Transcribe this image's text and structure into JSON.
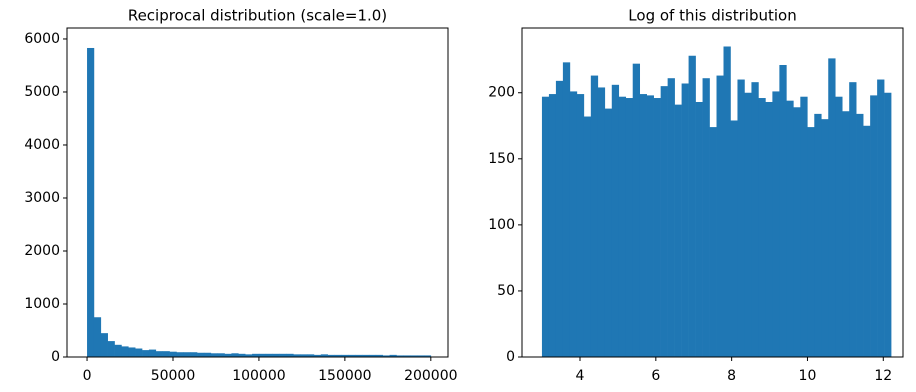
{
  "chart_data": [
    {
      "type": "histogram",
      "title": "Reciprocal distribution (scale=1.0)",
      "color": "#1f77b4",
      "bins": [
        0,
        4000,
        8000,
        12000,
        16000,
        20000,
        24000,
        28000,
        32000,
        36000,
        40000,
        44000,
        48000,
        52000,
        56000,
        60000,
        64000,
        68000,
        72000,
        76000,
        80000,
        84000,
        88000,
        92000,
        96000,
        100000,
        104000,
        108000,
        112000,
        116000,
        120000,
        124000,
        128000,
        132000,
        136000,
        140000,
        144000,
        148000,
        152000,
        156000,
        160000,
        164000,
        168000,
        172000,
        176000,
        180000,
        184000,
        188000,
        192000,
        196000,
        200000
      ],
      "values": [
        5830,
        750,
        450,
        300,
        230,
        200,
        180,
        160,
        130,
        140,
        110,
        110,
        100,
        90,
        90,
        90,
        80,
        80,
        70,
        70,
        60,
        70,
        60,
        50,
        60,
        60,
        60,
        60,
        60,
        60,
        50,
        50,
        50,
        40,
        50,
        40,
        40,
        40,
        40,
        40,
        40,
        40,
        40,
        30,
        40,
        30,
        30,
        30,
        30,
        30
      ],
      "xlim": [
        -11662,
        210000
      ],
      "ylim": [
        0,
        6207
      ],
      "xticks": [
        0,
        50000,
        100000,
        150000,
        200000
      ],
      "yticks": [
        0,
        1000,
        2000,
        3000,
        4000,
        5000,
        6000
      ]
    },
    {
      "type": "histogram",
      "title": "Log of this distribution",
      "color": "#1f77b4",
      "bins": [
        2.996,
        3.1802,
        3.3644,
        3.5486,
        3.7328,
        3.917,
        4.1012,
        4.2854,
        4.4696,
        4.6538,
        4.838,
        5.0222,
        5.2064,
        5.3906,
        5.5748,
        5.759,
        5.9432,
        6.1274,
        6.3116,
        6.4958,
        6.68,
        6.8642,
        7.0484,
        7.2326,
        7.4168,
        7.601,
        7.7852,
        7.9694,
        8.1536,
        8.3378,
        8.522,
        8.7062,
        8.8904,
        9.0746,
        9.2588,
        9.443,
        9.6272,
        9.8114,
        9.9956,
        10.1798,
        10.364,
        10.5482,
        10.7324,
        10.9166,
        11.1008,
        11.285,
        11.4692,
        11.6534,
        11.8376,
        12.0218,
        12.206
      ],
      "values": [
        197,
        199,
        209,
        223,
        201,
        199,
        182,
        213,
        204,
        188,
        206,
        197,
        196,
        222,
        199,
        198,
        196,
        205,
        211,
        191,
        207,
        228,
        193,
        211,
        174,
        213,
        235,
        179,
        210,
        200,
        208,
        196,
        193,
        201,
        221,
        194,
        189,
        197,
        174,
        184,
        180,
        226,
        197,
        186,
        208,
        184,
        175,
        198,
        210,
        200
      ],
      "xlim": [
        2.47,
        12.52
      ],
      "ylim": [
        0,
        249
      ],
      "xticks": [
        4,
        6,
        8,
        10,
        12
      ],
      "yticks": [
        0,
        50,
        100,
        150,
        200
      ]
    }
  ]
}
